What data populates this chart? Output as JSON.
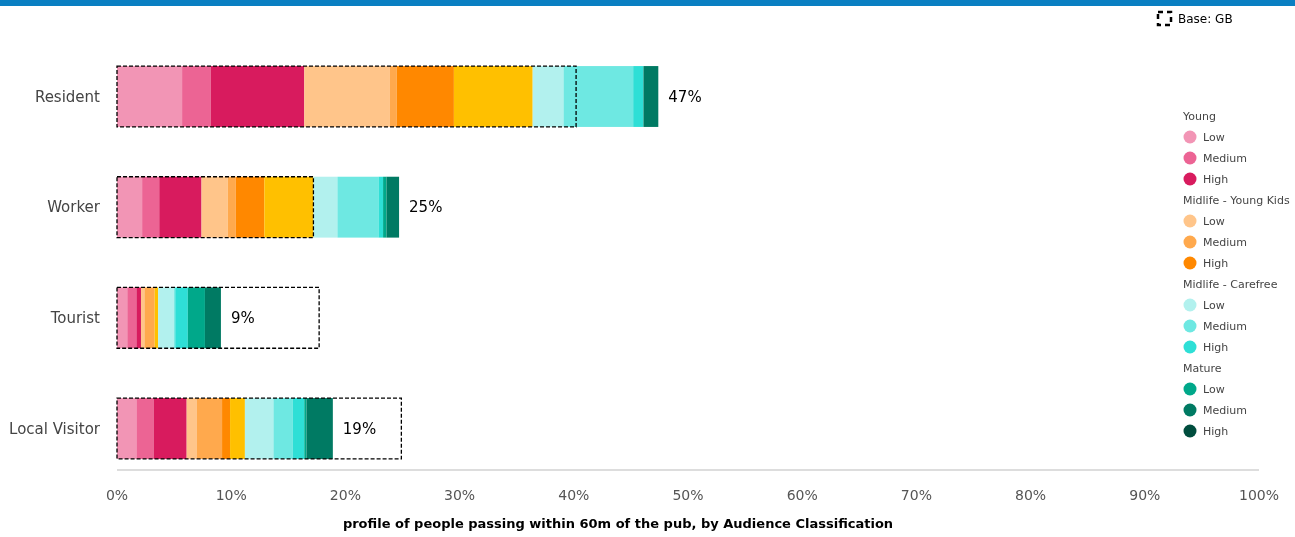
{
  "chart_data": [
    {
      "type": "bar",
      "orientation": "horizontal",
      "stacked": true,
      "title": "profile of people passing within 60m of the pub, by Audience Classification",
      "annotations": [
        "Young",
        "Midlife - Young Kids",
        "Midlife - Carefree",
        "Mature"
      ],
      "categories": [
        "Resident",
        "Worker",
        "Tourist",
        "Local Visitor"
      ],
      "xlim": [
        0,
        100
      ],
      "xticks": [
        {
          "value": 0,
          "label": "0%"
        },
        {
          "value": 10,
          "label": "10%"
        },
        {
          "value": 20,
          "label": "20%"
        },
        {
          "value": 30,
          "label": "30%"
        },
        {
          "value": 40,
          "label": "40%"
        },
        {
          "value": 50,
          "label": "50%"
        },
        {
          "value": 60,
          "label": "60%"
        },
        {
          "value": 70,
          "label": "70%"
        },
        {
          "value": 80,
          "label": "80%"
        },
        {
          "value": 90,
          "label": "90%"
        },
        {
          "value": 100,
          "label": "100%"
        }
      ],
      "grid": false,
      "legend": "right",
      "totals": [
        "47%",
        "25%",
        "9%",
        "19%"
      ],
      "series": [
        {
          "name": "Low",
          "color": "#f295b5",
          "values": [
            5.7,
            2.2,
            0.9,
            1.7
          ]
        },
        {
          "name": "Medium",
          "color": "#ec6494",
          "values": [
            2.5,
            1.5,
            0.8,
            1.5
          ]
        },
        {
          "name": "High",
          "color": "#d81b5e",
          "values": [
            8.2,
            3.7,
            0.4,
            2.9
          ]
        },
        {
          "name": "Low",
          "color": "#ffc58a",
          "values": [
            7.5,
            2.3,
            0.3,
            0.9
          ]
        },
        {
          "name": "Medium",
          "color": "#ffa94d",
          "values": [
            0.6,
            0.7,
            0.9,
            2.2
          ]
        },
        {
          "name": "High",
          "color": "#ff8800",
          "values": [
            5.0,
            2.5,
            0,
            0.7
          ]
        },
        {
          "color": "#ffc000",
          "values": [
            6.9,
            4.3,
            0.3,
            1.3
          ]
        },
        {
          "name": "Low",
          "color": "#b2f1ee",
          "values": [
            2.7,
            2.1,
            1.4,
            2.5
          ]
        },
        {
          "name": "Medium",
          "color": "#6ee8e2",
          "values": [
            6.1,
            3.6,
            0.1,
            1.7
          ]
        },
        {
          "name": "High",
          "color": "#2edfd6",
          "values": [
            0.9,
            0.4,
            1.1,
            1.0
          ]
        },
        {
          "name": "Low",
          "color": "#00a88a",
          "values": [
            0,
            0.3,
            1.5,
            0.2
          ]
        },
        {
          "name": "Medium",
          "color": "#007a63",
          "values": [
            1.3,
            1.1,
            1.4,
            2.3
          ]
        },
        {
          "name": "High",
          "color": "#004d3e",
          "values": [
            0,
            0,
            0,
            0
          ]
        }
      ]
    },
    {
      "type": "bar",
      "orientation": "horizontal",
      "categories": [
        null,
        null,
        null,
        null
      ],
      "xlim": [
        0,
        100
      ],
      "tick_labels": false,
      "legend": "top right",
      "line_style": "dashed",
      "series": [
        {
          "name": "Base: GB",
          "color": "#000000",
          "values": [
            40.2,
            17.2,
            17.7,
            24.9
          ]
        }
      ]
    }
  ]
}
